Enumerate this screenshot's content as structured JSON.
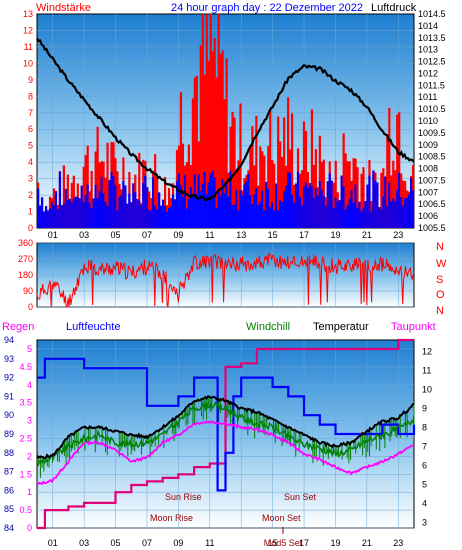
{
  "colors": {
    "red": "#ff0000",
    "blue": "#0000ff",
    "black": "#000000",
    "green": "#008000",
    "magenta": "#ff00ff",
    "crimson": "#dd0077",
    "darkred": "#990000",
    "tick_blue": "#0000aa"
  },
  "header": {
    "left": "Windstärke",
    "center": "24 hour graph day : 22 Dezember 2022",
    "right": "Luftdruck"
  },
  "legend": {
    "regen": "Regen",
    "luftfeuchte": "Luftfeuchte",
    "windchill": "Windchill",
    "temperatur": "Temperatur",
    "taupunkt": "Taupunkt"
  },
  "compass": [
    "N",
    "W",
    "S",
    "O",
    "N"
  ],
  "annotations": {
    "sun_rise": "Sun Rise",
    "sun_set": "Sun Set",
    "moon_rise": "Moon Rise",
    "moon_set": "Moon Set",
    "mond_set_axis": "Mod5 Set"
  },
  "chart_data": [
    {
      "type": "bar",
      "title": "24 hour graph day : 22 Dezember 2022",
      "x_ticks": [
        "01",
        "03",
        "05",
        "07",
        "09",
        "11",
        "13",
        "15",
        "17",
        "19",
        "21",
        "23"
      ],
      "y_left_label": "Windstärke",
      "y_left_ticks": [
        "0",
        "1",
        "2",
        "3",
        "4",
        "5",
        "6",
        "7",
        "8",
        "9",
        "10",
        "11",
        "12",
        "13"
      ],
      "y_left_range": [
        0,
        13
      ],
      "y_right_label": "Luftdruck",
      "y_right_ticks": [
        "1005.5",
        "1006",
        "1006.5",
        "1007",
        "1007.5",
        "1008",
        "1008.5",
        "1009",
        "1009.5",
        "1010",
        "1010.5",
        "1011",
        "1011.5",
        "1012",
        "1012.5",
        "1013",
        "1013.5",
        "1014",
        "1014.5"
      ],
      "y_right_range": [
        1005.5,
        1014.5
      ],
      "series": [
        {
          "name": "Windstärke",
          "type": "bar",
          "hours": [
            0,
            0.5,
            1,
            1.5,
            2,
            2.5,
            3,
            3.5,
            4,
            4.5,
            5,
            5.5,
            6,
            6.5,
            7,
            7.5,
            8,
            8.5,
            9,
            9.5,
            10,
            10.5,
            11,
            11.5,
            12,
            12.5,
            13,
            13.5,
            14,
            14.5,
            15,
            15.5,
            16,
            16.5,
            17,
            17.5,
            18,
            18.5,
            19,
            19.5,
            20,
            20.5,
            21,
            21.5,
            22,
            22.5,
            23,
            23.5
          ],
          "values": [
            3.5,
            1.5,
            2.5,
            3,
            3.5,
            4,
            5,
            4.5,
            5.5,
            5,
            4,
            4.5,
            3.5,
            4,
            4.5,
            4,
            3,
            2.5,
            8,
            9.5,
            11,
            12,
            13,
            12,
            9,
            7,
            6,
            5.5,
            6,
            7,
            5.5,
            6.5,
            7,
            5.5,
            5.5,
            6,
            5,
            4,
            3.5,
            5.5,
            5,
            4.5,
            3.5,
            3,
            4,
            9,
            8.5,
            5
          ]
        },
        {
          "name": "Luftdruck",
          "type": "line",
          "hours": [
            0,
            1,
            2,
            3,
            4,
            5,
            6,
            7,
            8,
            9,
            10,
            11,
            12,
            13,
            14,
            15,
            16,
            17,
            18,
            19,
            20,
            21,
            22,
            23,
            24
          ],
          "values": [
            1013.5,
            1012.6,
            1011.7,
            1010.9,
            1010.1,
            1009.3,
            1008.6,
            1008,
            1007.5,
            1007.1,
            1006.8,
            1006.7,
            1007.3,
            1008.2,
            1009.5,
            1010.6,
            1011.8,
            1012.3,
            1012.2,
            1011.7,
            1011.3,
            1010.6,
            1009.6,
            1008.7,
            1008.3
          ]
        }
      ]
    },
    {
      "type": "line",
      "title": "",
      "y_ticks": [
        "0",
        "90",
        "180",
        "270",
        "360"
      ],
      "y_range": [
        0,
        360
      ],
      "series": [
        {
          "name": "",
          "hours": [
            0,
            1,
            2,
            3,
            4,
            5,
            6,
            7,
            8,
            9,
            10,
            11,
            12,
            13,
            14,
            15,
            16,
            17,
            18,
            19,
            20,
            21,
            22,
            23,
            24
          ],
          "values": [
            60,
            140,
            20,
            230,
            210,
            220,
            190,
            230,
            180,
            90,
            250,
            260,
            250,
            240,
            250,
            260,
            250,
            255,
            245,
            230,
            240,
            225,
            240,
            190,
            200
          ]
        }
      ]
    },
    {
      "type": "line",
      "title": "",
      "x_ticks": [
        "01",
        "03",
        "05",
        "07",
        "09",
        "11",
        "13",
        "15",
        "17",
        "19",
        "21",
        "23"
      ],
      "y_humidity_ticks": [
        "84",
        "85",
        "86",
        "87",
        "88",
        "89",
        "90",
        "91",
        "92",
        "93",
        "94"
      ],
      "y_humidity_range": [
        84,
        94
      ],
      "y_rain_ticks": [
        "0",
        "0.5",
        "1",
        "1.5",
        "2",
        "2.5",
        "3",
        "3.5",
        "4",
        "4.5",
        "5"
      ],
      "y_rain_range": [
        0,
        5.25
      ],
      "y_temp_ticks": [
        "3",
        "4",
        "5",
        "6",
        "7",
        "8",
        "9",
        "10",
        "11",
        "12"
      ],
      "y_temp_range": [
        2.7,
        12.6
      ],
      "series": [
        {
          "name": "Regen",
          "hours": [
            0,
            0.5,
            1,
            1.5,
            2,
            3,
            4,
            5,
            6,
            7,
            8,
            9,
            10,
            11,
            12,
            13,
            14,
            15,
            16,
            17,
            18,
            19,
            20,
            21,
            22,
            23,
            24
          ],
          "values": [
            0,
            0.5,
            0.5,
            0.5,
            0.6,
            0.7,
            0.7,
            1,
            1.2,
            1.3,
            1.4,
            1.5,
            1.7,
            1.8,
            4.5,
            4.6,
            5,
            5,
            5,
            5,
            5,
            5,
            5,
            5,
            5,
            5.25,
            5.25
          ]
        },
        {
          "name": "Luftfeuchte",
          "hours": [
            0,
            0.5,
            1,
            2,
            3,
            4,
            5,
            6,
            7,
            8,
            9,
            10,
            11,
            11.5,
            12,
            12.5,
            13,
            14,
            15,
            16,
            17,
            18,
            19,
            20,
            21,
            22,
            23,
            24
          ],
          "values": [
            92,
            93,
            93,
            93,
            92.5,
            92.5,
            92.5,
            92.5,
            90.5,
            90.5,
            91,
            92,
            92,
            86,
            88,
            91,
            92,
            92,
            91.5,
            91,
            90,
            89.5,
            89,
            89,
            89,
            89.5,
            89,
            89.5
          ]
        },
        {
          "name": "Temperatur",
          "hours": [
            0,
            1,
            2,
            3,
            4,
            5,
            6,
            7,
            8,
            9,
            10,
            11,
            12,
            13,
            14,
            15,
            16,
            17,
            18,
            19,
            20,
            21,
            22,
            23,
            24
          ],
          "values": [
            6.4,
            6.5,
            7.5,
            8,
            8,
            7.8,
            7.6,
            7.5,
            8,
            8.6,
            9.4,
            9.6,
            9.4,
            9,
            8.8,
            8.4,
            8,
            7.6,
            7.2,
            7,
            7.2,
            7.8,
            8.3,
            8.5,
            9.2
          ]
        },
        {
          "name": "Windchill",
          "hours": [
            0,
            1,
            2,
            3,
            4,
            5,
            6,
            7,
            8,
            9,
            10,
            11,
            12,
            13,
            14,
            15,
            16,
            17,
            18,
            19,
            20,
            21,
            22,
            23,
            24
          ],
          "values": [
            6.1,
            6.4,
            7,
            7.4,
            7.6,
            7.2,
            7.1,
            7.2,
            7.6,
            8.3,
            9,
            9.2,
            9,
            8.5,
            8.2,
            8,
            7.5,
            7.1,
            6.9,
            6.6,
            6.8,
            7.3,
            7.6,
            7.9,
            8.4
          ]
        },
        {
          "name": "Taupunkt",
          "hours": [
            0,
            1,
            2,
            3,
            4,
            5,
            6,
            7,
            8,
            9,
            10,
            11,
            12,
            13,
            14,
            15,
            16,
            17,
            18,
            19,
            20,
            21,
            22,
            23,
            24
          ],
          "values": [
            5,
            5.2,
            6.2,
            7.2,
            7.2,
            6.8,
            6.2,
            6.4,
            7.2,
            7.6,
            8.2,
            8.3,
            8.2,
            8,
            7.9,
            7.6,
            7.2,
            6.6,
            6.3,
            5.9,
            5.6,
            5.9,
            6.2,
            6.6,
            7.1
          ]
        }
      ]
    }
  ]
}
